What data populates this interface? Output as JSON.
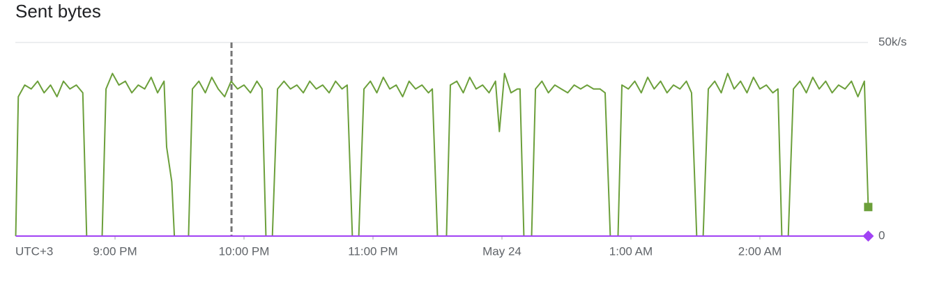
{
  "chart_data": {
    "type": "line",
    "title": "Sent bytes",
    "xlabel": "UTC+3",
    "xlim": [
      20.227,
      26.838
    ],
    "ylim": [
      0,
      50
    ],
    "xticks": [
      {
        "value": 21,
        "label": "9:00 PM"
      },
      {
        "value": 22,
        "label": "10:00 PM"
      },
      {
        "value": 23,
        "label": "11:00 PM"
      },
      {
        "value": 24,
        "label": "May 24"
      },
      {
        "value": 25,
        "label": "1:00 AM"
      },
      {
        "value": 26,
        "label": "2:00 AM"
      }
    ],
    "yticks": [
      {
        "value": 50,
        "label": "50k/s"
      },
      0
    ],
    "grid": true,
    "event_x": 21.903,
    "series": [
      {
        "color": "#6b9f3a",
        "x": [
          20.23,
          20.25,
          20.3,
          20.35,
          20.4,
          20.45,
          20.5,
          20.55,
          20.6,
          20.65,
          20.7,
          20.75,
          20.78,
          20.9,
          20.93,
          20.98,
          21.03,
          21.08,
          21.13,
          21.18,
          21.23,
          21.28,
          21.33,
          21.38,
          21.4,
          21.44,
          21.46,
          21.57,
          21.6,
          21.65,
          21.7,
          21.75,
          21.8,
          21.85,
          21.9,
          21.95,
          22.0,
          22.05,
          22.1,
          22.14,
          22.17,
          22.22,
          22.26,
          22.31,
          22.36,
          22.41,
          22.46,
          22.51,
          22.56,
          22.61,
          22.66,
          22.71,
          22.76,
          22.8,
          22.84,
          22.89,
          22.93,
          22.98,
          23.03,
          23.08,
          23.13,
          23.18,
          23.23,
          23.28,
          23.33,
          23.38,
          23.43,
          23.46,
          23.5,
          23.57,
          23.6,
          23.65,
          23.7,
          23.75,
          23.8,
          23.85,
          23.9,
          23.95,
          23.98,
          24.02,
          24.07,
          24.12,
          24.14,
          24.17,
          24.23,
          24.26,
          24.31,
          24.36,
          24.41,
          24.46,
          24.51,
          24.56,
          24.61,
          24.66,
          24.71,
          24.76,
          24.8,
          24.84,
          24.9,
          24.93,
          24.98,
          25.03,
          25.08,
          25.13,
          25.18,
          25.23,
          25.28,
          25.33,
          25.38,
          25.43,
          25.47,
          25.51,
          25.56,
          25.6,
          25.65,
          25.7,
          25.75,
          25.8,
          25.85,
          25.9,
          25.95,
          26.0,
          26.05,
          26.1,
          26.14,
          26.17,
          26.22,
          26.26,
          26.31,
          26.36,
          26.41,
          26.46,
          26.51,
          26.56,
          26.61,
          26.66,
          26.71,
          26.76,
          26.81,
          26.84
        ],
        "values": [
          0,
          36,
          39,
          38,
          40,
          37,
          39,
          36,
          40,
          38,
          39,
          37,
          0,
          0,
          38,
          42,
          39,
          40,
          37,
          39,
          38,
          41,
          37,
          40,
          23,
          14,
          0,
          0,
          38,
          40,
          37,
          41,
          38,
          36,
          40,
          38,
          39,
          37,
          40,
          38,
          0,
          0,
          38,
          40,
          38,
          39,
          37,
          40,
          38,
          39,
          37,
          40,
          38,
          39,
          0,
          0,
          38,
          40,
          37,
          41,
          38,
          39,
          36,
          40,
          38,
          39,
          37,
          38,
          0,
          0,
          39,
          40,
          37,
          41,
          38,
          39,
          37,
          40,
          27,
          42,
          37,
          38,
          38,
          0,
          0,
          38,
          40,
          37,
          39,
          38,
          37,
          39,
          38,
          39,
          38,
          38,
          37,
          0,
          0,
          39,
          38,
          40,
          37,
          41,
          38,
          40,
          37,
          39,
          38,
          40,
          37,
          0,
          0,
          38,
          40,
          37,
          42,
          38,
          40,
          37,
          41,
          38,
          39,
          37,
          38,
          0,
          0,
          38,
          40,
          37,
          41,
          38,
          40,
          37,
          39,
          38,
          40,
          36,
          40,
          7.5
        ]
      },
      {
        "color": "#a142f4",
        "x": [
          20.23,
          26.84
        ],
        "values": [
          0,
          0
        ]
      }
    ]
  }
}
